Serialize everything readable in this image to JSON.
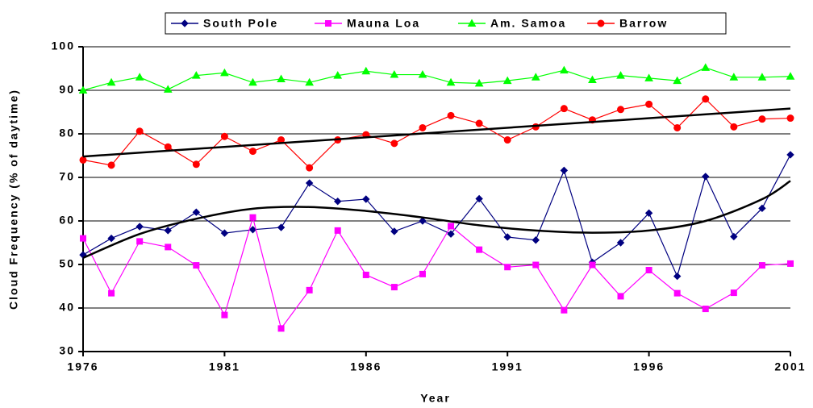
{
  "chart_data": {
    "type": "line",
    "xlabel": "Year",
    "ylabel": "Cloud Frequency (% of daytime)",
    "x": [
      1976,
      1977,
      1978,
      1979,
      1980,
      1981,
      1982,
      1983,
      1984,
      1985,
      1986,
      1987,
      1988,
      1989,
      1990,
      1991,
      1992,
      1993,
      1994,
      1995,
      1996,
      1997,
      1998,
      1999,
      2000,
      2001
    ],
    "series": [
      {
        "name": "South Pole",
        "color": "#000080",
        "marker": "diamond",
        "values": [
          52.2,
          56,
          58.7,
          57.8,
          62,
          57.2,
          58,
          58.5,
          68.7,
          64.5,
          65,
          57.6,
          60,
          57,
          65.1,
          56.3,
          55.6,
          71.6,
          50.5,
          55,
          61.8,
          47.3,
          70.2,
          56.4,
          62.9,
          75.2
        ]
      },
      {
        "name": "Mauna Loa",
        "color": "#ff00ff",
        "marker": "square",
        "values": [
          56,
          43.4,
          55.3,
          54,
          49.8,
          38.4,
          60.8,
          35.3,
          44.1,
          57.8,
          47.6,
          44.8,
          47.8,
          58.8,
          53.4,
          49.4,
          49.9,
          39.5,
          49.9,
          42.7,
          48.7,
          43.4,
          39.8,
          43.5,
          49.8,
          50.2
        ]
      },
      {
        "name": "Am. Samoa",
        "color": "#00ff00",
        "marker": "triangle",
        "values": [
          90,
          91.8,
          93,
          90.2,
          93.4,
          94,
          91.8,
          92.6,
          91.8,
          93.4,
          94.4,
          93.6,
          93.6,
          91.8,
          91.6,
          92.2,
          93,
          94.6,
          92.4,
          93.4,
          92.8,
          92.2,
          95.2,
          93,
          93,
          93.2
        ]
      },
      {
        "name": "Barrow",
        "color": "#ff0000",
        "marker": "circle",
        "values": [
          74,
          72.8,
          80.6,
          77,
          73,
          79.4,
          76,
          78.6,
          72.2,
          78.6,
          79.8,
          77.8,
          81.4,
          84.2,
          82.4,
          78.6,
          81.6,
          85.8,
          83.2,
          85.6,
          86.8,
          81.4,
          88,
          81.6,
          83.4,
          83.6
        ]
      }
    ],
    "trendlines": [
      {
        "color": "#000000",
        "x": [
          1976,
          2001
        ],
        "values": [
          74.8,
          85.8
        ]
      },
      {
        "color": "#000000",
        "x": [
          1976,
          1978,
          1980,
          1982,
          1984,
          1986,
          1988,
          1990,
          1992,
          1994,
          1996,
          1998,
          2000,
          2001
        ],
        "values": [
          51.5,
          57,
          60.5,
          62.8,
          63.2,
          62.3,
          60.8,
          59,
          57.8,
          57.3,
          57.8,
          60,
          65,
          69.2
        ]
      }
    ],
    "xlim": [
      1976,
      2001
    ],
    "xticks": [
      1976,
      1981,
      1986,
      1991,
      1996,
      2001
    ],
    "ylim": [
      30,
      100
    ],
    "yticks": [
      30,
      40,
      50,
      60,
      70,
      80,
      90,
      100
    ],
    "grid": true,
    "legend": "top"
  }
}
